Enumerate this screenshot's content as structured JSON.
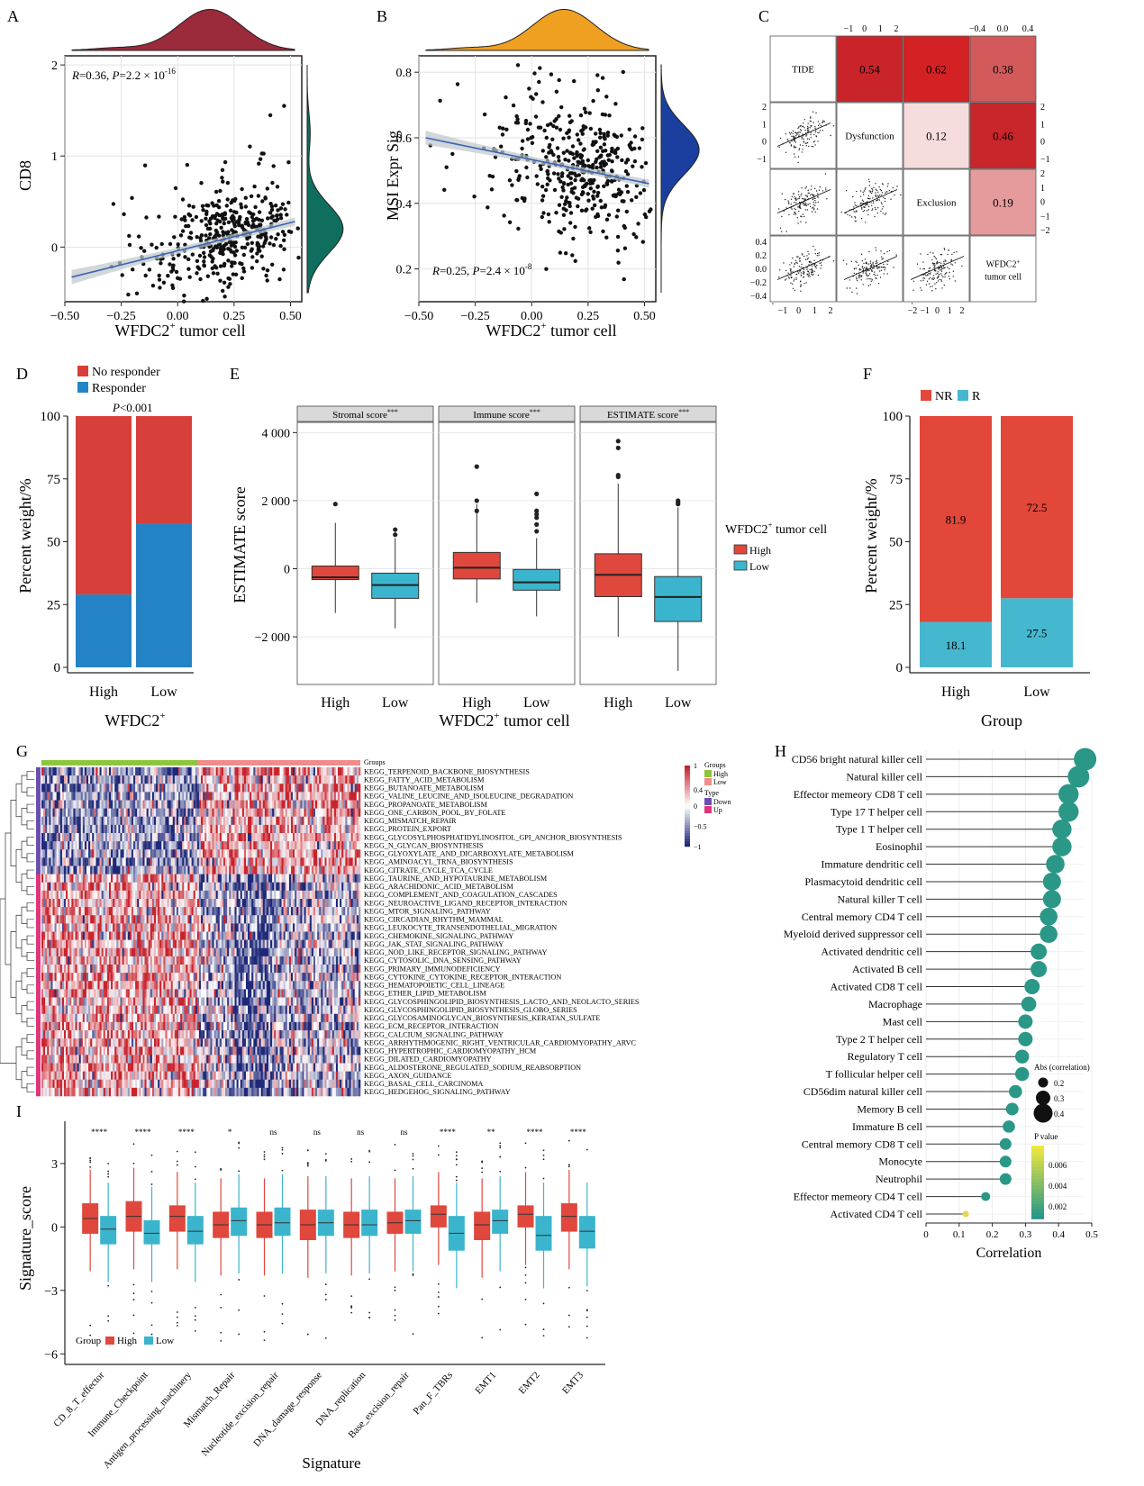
{
  "chart_data": [
    {
      "id": "A",
      "type": "scatter",
      "panel_label": "A",
      "xlabel": "WFDC2",
      "xlabel_sup": "+",
      "xlabel_rest": " tumor cell",
      "ylabel": "CD8",
      "annotation": {
        "r": "R",
        "r_val": "=0.36, ",
        "p": "P",
        "p_val": "=2.2 × 10",
        "p_exp": "-16"
      },
      "xlim": [
        -0.5,
        0.55
      ],
      "ylim": [
        -0.6,
        2.1
      ],
      "xticks": [
        "-0.50",
        "-0.25",
        "0.00",
        "0.25",
        "0.50"
      ],
      "xtick_vals": [
        -0.5,
        -0.25,
        0,
        0.25,
        0.5
      ],
      "yticks": [
        "0",
        "1",
        "2"
      ],
      "ytick_vals": [
        0,
        1,
        2
      ],
      "fit": {
        "x": [
          -0.47,
          0.52
        ],
        "y": [
          -0.33,
          0.28
        ]
      },
      "x_density_color": "#9b2a3a",
      "y_density_color": "#0f6e5e"
    },
    {
      "id": "B",
      "type": "scatter",
      "panel_label": "B",
      "xlabel": "WFDC2",
      "xlabel_sup": "+",
      "xlabel_rest": " tumor cell",
      "ylabel": "MSI Expr Sig",
      "annotation": {
        "r": "R",
        "r_val": "=0.25, ",
        "p": "P",
        "p_val": "=2.4 × 10",
        "p_exp": "-8"
      },
      "xlim": [
        -0.5,
        0.55
      ],
      "ylim": [
        0.1,
        0.85
      ],
      "xticks": [
        "-0.50",
        "-0.25",
        "0.00",
        "0.25",
        "0.50"
      ],
      "xtick_vals": [
        -0.5,
        -0.25,
        0,
        0.25,
        0.5
      ],
      "yticks": [
        "0.2",
        "0.4",
        "0.6",
        "0.8"
      ],
      "ytick_vals": [
        0.2,
        0.4,
        0.6,
        0.8
      ],
      "fit": {
        "x": [
          -0.47,
          0.52
        ],
        "y": [
          0.6,
          0.46
        ]
      },
      "x_density_color": "#f0a020",
      "y_density_color": "#1a3f9e"
    },
    {
      "id": "C",
      "type": "table",
      "panel_label": "C",
      "variables": [
        "TIDE",
        "Dysfunction",
        "Exclusion",
        "WFDC2",
        "tumor cell"
      ],
      "wfdc2_sup": "+",
      "correlations": [
        {
          "row": 0,
          "col": 1,
          "value": "0.54",
          "color": "#c8242a"
        },
        {
          "row": 0,
          "col": 2,
          "value": "0.62",
          "color": "#d42224"
        },
        {
          "row": 0,
          "col": 3,
          "value": "0.38",
          "color": "#d25a5a"
        },
        {
          "row": 1,
          "col": 2,
          "value": "0.12",
          "color": "#f6dcdc"
        },
        {
          "row": 1,
          "col": 3,
          "value": "0.46",
          "color": "#c9262c"
        },
        {
          "row": 2,
          "col": 3,
          "value": "0.19",
          "color": "#e59a9c"
        }
      ],
      "top_ticks_1": [
        "-1",
        "0",
        "1",
        "2"
      ],
      "top_ticks_2": [
        "-0.4",
        "0.0",
        "0.4"
      ],
      "right_ticks_1": [
        "2",
        "1",
        "0",
        "-1"
      ],
      "right_ticks_2": [
        "2",
        "1",
        "0",
        "-1",
        "-2"
      ],
      "left_ticks_1": [
        "2",
        "1",
        "0",
        "-1"
      ],
      "left_ticks_2": [
        "0.4",
        "0.2",
        "0.0",
        "-0.2",
        "-0.4"
      ],
      "bottom_ticks_1": [
        "-1",
        "0",
        "1",
        "2"
      ],
      "bottom_ticks_2": [
        "-2",
        "-1",
        "0",
        "1",
        "2"
      ]
    },
    {
      "id": "D",
      "type": "bar",
      "panel_label": "D",
      "categories": [
        "High",
        "Low"
      ],
      "series": [
        {
          "name": "Responder",
          "values": [
            29,
            57
          ],
          "color": "#2483c5"
        },
        {
          "name": "No responder",
          "values": [
            71,
            43
          ],
          "color": "#d7403a"
        }
      ],
      "ylabel": "Percent weight/%",
      "xlabel": "WFDC2",
      "xlabel_sup": "+",
      "yticks": [
        "0",
        "25",
        "50",
        "75",
        "100"
      ],
      "ylim": [
        0,
        100
      ],
      "annotation": {
        "p": "P",
        "p_rest": "<0.001"
      }
    },
    {
      "id": "E",
      "type": "bar",
      "subtype": "boxplot",
      "panel_label": "E",
      "facets": [
        {
          "title": "Stromal score",
          "stars": "***",
          "boxes": [
            {
              "group": "High",
              "q1": -320,
              "median": -250,
              "q3": 80,
              "whisker_low": -1300,
              "whisker_high": 1350,
              "outliers": [
                1900
              ]
            },
            {
              "group": "Low",
              "q1": -870,
              "median": -480,
              "q3": -130,
              "whisker_low": -1750,
              "whisker_high": 900,
              "outliers": [
                1000,
                1150
              ]
            }
          ]
        },
        {
          "title": "Immune score",
          "stars": "***",
          "boxes": [
            {
              "group": "High",
              "q1": -300,
              "median": 30,
              "q3": 480,
              "whisker_low": -1000,
              "whisker_high": 1900,
              "outliers": [
                2000,
                1700,
                3000
              ]
            },
            {
              "group": "Low",
              "q1": -630,
              "median": -400,
              "q3": -20,
              "whisker_low": -1400,
              "whisker_high": 900,
              "outliers": [
                1100,
                1300,
                1500,
                1600,
                1700,
                2200
              ]
            }
          ]
        },
        {
          "title": "ESTIMATE score",
          "stars": "***",
          "boxes": [
            {
              "group": "High",
              "q1": -820,
              "median": -180,
              "q3": 440,
              "whisker_low": -2000,
              "whisker_high": 2500,
              "outliers": [
                2700,
                2750,
                3550,
                3750
              ]
            },
            {
              "group": "Low",
              "q1": -1550,
              "median": -830,
              "q3": -230,
              "whisker_low": -3000,
              "whisker_high": 1800,
              "outliers": [
                1900,
                1950,
                2000
              ]
            }
          ]
        }
      ],
      "ylabel": "ESTIMATE score",
      "xlabel": "WFDC2",
      "xlabel_sup": "+",
      "xlabel_rest": " tumor cell",
      "yticks": [
        "4 000",
        "2 000",
        "0",
        "−2 000"
      ],
      "ytick_vals": [
        4000,
        2000,
        0,
        -2000
      ],
      "ylim": [
        -3400,
        4300
      ],
      "legend_title": "WFDC2",
      "legend_title_sup": "+",
      "legend_title_rest": " tumor cell",
      "legend": [
        {
          "name": "High",
          "color": "#e0473d"
        },
        {
          "name": "Low",
          "color": "#3bb5cd"
        }
      ]
    },
    {
      "id": "F",
      "type": "bar",
      "panel_label": "F",
      "categories": [
        "High",
        "Low"
      ],
      "series": [
        {
          "name": "R",
          "values": [
            18.1,
            27.5
          ],
          "labels": [
            "18.1",
            "27.5"
          ],
          "color": "#45b8cf"
        },
        {
          "name": "NR",
          "values": [
            81.9,
            72.5
          ],
          "labels": [
            "81.9",
            "72.5"
          ],
          "color": "#e2473a"
        }
      ],
      "ylabel": "Percent weight/%",
      "xlabel": "Group",
      "yticks": [
        "0",
        "25",
        "50",
        "75",
        "100"
      ],
      "ylim": [
        0,
        100
      ]
    },
    {
      "id": "G",
      "type": "heatmap",
      "panel_label": "G",
      "pathways": [
        "KEGG_TERPENOID_BACKBONE_BIOSYNTHESIS",
        "KEGG_FATTY_ACID_METABOLISM",
        "KEGG_BUTANOATE_METABOLISM",
        "KEGG_VALINE_LEUCINE_AND_ISOLEUCINE_DEGRADATION",
        "KEGG_PROPANOATE_METABOLISM",
        "KEGG_ONE_CARBON_POOL_BY_FOLATE",
        "KEGG_MISMATCH_REPAIR",
        "KEGG_PROTEIN_EXPORT",
        "KEGG_GLYCOSYLPHOSPHATIDYLINOSITOL_GPI_ANCHOR_BIOSYNTHESIS",
        "KEGG_N_GLYCAN_BIOSYNTHESIS",
        "KEGG_GLYOXYLATE_AND_DICARBOXYLATE_METABOLISM",
        "KEGG_AMINOACYL_TRNA_BIOSYNTHESIS",
        "KEGG_CITRATE_CYCLE_TCA_CYCLE",
        "KEGG_TAURINE_AND_HYPOTAURINE_METABOLISM",
        "KEGG_ARACHIDONIC_ACID_METABOLISM",
        "KEGG_COMPLEMENT_AND_COAGULATION_CASCADES",
        "KEGG_NEUROACTIVE_LIGAND_RECEPTOR_INTERACTION",
        "KEGG_MTOR_SIGNALING_PATHWAY",
        "KEGG_CIRCADIAN_RHYTHM_MAMMAL",
        "KEGG_LEUKOCYTE_TRANSENDOTHELIAL_MIGRATION",
        "KEGG_CHEMOKINE_SIGNALING_PATHWAY",
        "KEGG_JAK_STAT_SIGNALING_PATHWAY",
        "KEGG_NOD_LIKE_RECEPTOR_SIGNALING_PATHWAY",
        "KEGG_CYTOSOLIC_DNA_SENSING_PATHWAY",
        "KEGG_PRIMARY_IMMUNODEFICIENCY",
        "KEGG_CYTOKINE_CYTOKINE_RECEPTOR_INTERACTION",
        "KEGG_HEMATOPOIETIC_CELL_LINEAGE",
        "KEGG_ETHER_LIPID_METABOLISM",
        "KEGG_GLYCOSPHINGOLIPID_BIOSYNTHESIS_LACTO_AND_NEOLACTO_SERIES",
        "KEGG_GLYCOSPHINGOLIPID_BIOSYNTHESIS_GLOBO_SERIES",
        "KEGG_GLYCOSAMINOGLYCAN_BIOSYNTHESIS_KERATAN_SULFATE",
        "KEGG_ECM_RECEPTOR_INTERACTION",
        "KEGG_CALCIUM_SIGNALING_PATHWAY",
        "KEGG_ARRHYTHMOGENIC_RIGHT_VENTRICULAR_CARDIOMYOPATHY_ARVC",
        "KEGG_HYPERTROPHIC_CARDIOMYOPATHY_HCM",
        "KEGG_DILATED_CARDIOMYOPATHY",
        "KEGG_ALDOSTERONE_REGULATED_SODIUM_REABSORPTION",
        "KEGG_AXON_GUIDANCE",
        "KEGG_BASAL_CELL_CARCINOMA",
        "KEGG_HEDGEHOG_SIGNALING_PATHWAY"
      ],
      "groups_label": "Groups",
      "legend": {
        "groups_title": "Groups",
        "groups": [
          {
            "name": "High",
            "color": "#8cc63e"
          },
          {
            "name": "Low",
            "color": "#f08c8c"
          }
        ],
        "type_title": "Type",
        "types": [
          {
            "name": "Down",
            "color": "#6a4fb0"
          },
          {
            "name": "Up",
            "color": "#e0357a"
          }
        ],
        "scale_ticks": [
          "1",
          "0.4",
          "0",
          "-0.5",
          "-1"
        ],
        "scale_vals": [
          1,
          0.4,
          0,
          -0.5,
          -1
        ]
      },
      "down_count": 13
    },
    {
      "id": "H",
      "type": "scatter",
      "subtype": "lollipop",
      "panel_label": "H",
      "cells": [
        "CD56 bright natural killer cell",
        "Natural killer cell",
        "Effector memeory CD8 T cell",
        "Type 17 T helper cell",
        "Type 1 T helper cell",
        "Eosinophil",
        "Immature dendritic cell",
        "Plasmacytoid dendritic cell",
        "Natural killer T cell",
        "Central memory CD4 T cell",
        "Myeloid derived suppressor cell",
        "Activated dendritic cell",
        "Activated B cell",
        "Activated CD8 T cell",
        "Macrophage",
        "Mast cell",
        "Type 2 T helper cell",
        "Regulatory T cell",
        "T follicular helper cell",
        "CD56dim natural killer cell",
        "Memory B cell",
        "Immature B cell",
        "Central memory CD8 T cell",
        "Monocyte",
        "Neutrophil",
        "Effector memeory CD4 T cell",
        "Activated CD4 T cell"
      ],
      "correlation": [
        0.48,
        0.46,
        0.43,
        0.43,
        0.41,
        0.41,
        0.39,
        0.38,
        0.38,
        0.37,
        0.37,
        0.34,
        0.34,
        0.32,
        0.31,
        0.3,
        0.3,
        0.29,
        0.29,
        0.27,
        0.26,
        0.25,
        0.24,
        0.24,
        0.24,
        0.18,
        0.12
      ],
      "xlabel": "Correlation",
      "xticks": [
        "0",
        "0.1",
        "0.2",
        "0.3",
        "0.4",
        "0.5"
      ],
      "xlim": [
        0,
        0.5
      ],
      "size_legend_title": "Abs (correlation)",
      "size_legend": [
        "0.2",
        "0.3",
        "0.4"
      ],
      "color_legend_title": "P value",
      "color_legend": [
        "0.006",
        "0.004",
        "0.002"
      ],
      "point_color": "#2a9787",
      "weak_color": "#e8d84a"
    },
    {
      "id": "I",
      "type": "bar",
      "subtype": "boxplot",
      "panel_label": "I",
      "categories": [
        "CD_8_T_effector",
        "Immune_Checkpoint",
        "Antigen_processing_machinery",
        "Mismatch_Repair",
        "Nucleotide_excision_repair",
        "DNA_damage_response",
        "DNA_replication",
        "Base_excision_repair",
        "Pan_F_TBRs",
        "EMT1",
        "EMT2",
        "EMT3"
      ],
      "significance": [
        "****",
        "****",
        "****",
        "*",
        "ns",
        "ns",
        "ns",
        "ns",
        "****",
        "**",
        "****",
        "****"
      ],
      "high": [
        [
          -0.3,
          0.4,
          1.1
        ],
        [
          -0.2,
          0.5,
          1.2
        ],
        [
          -0.2,
          0.5,
          1.0
        ],
        [
          -0.5,
          0.1,
          0.7
        ],
        [
          -0.5,
          0.1,
          0.7
        ],
        [
          -0.6,
          0.1,
          0.8
        ],
        [
          -0.5,
          0.1,
          0.7
        ],
        [
          -0.3,
          0.2,
          0.7
        ],
        [
          0,
          0.6,
          1.0
        ],
        [
          -0.6,
          0.1,
          0.7
        ],
        [
          0,
          0.6,
          1.0
        ],
        [
          -0.2,
          0.5,
          1.1
        ]
      ],
      "low": [
        [
          -0.8,
          -0.1,
          0.5
        ],
        [
          -0.8,
          -0.3,
          0.3
        ],
        [
          -0.8,
          -0.2,
          0.5
        ],
        [
          -0.4,
          0.3,
          0.9
        ],
        [
          -0.4,
          0.2,
          0.9
        ],
        [
          -0.4,
          0.2,
          0.8
        ],
        [
          -0.4,
          0.1,
          0.8
        ],
        [
          -0.3,
          0.3,
          0.8
        ],
        [
          -1.1,
          -0.3,
          0.5
        ],
        [
          -0.3,
          0.3,
          0.8
        ],
        [
          -1.1,
          -0.4,
          0.5
        ],
        [
          -1.0,
          -0.2,
          0.5
        ]
      ],
      "ylabel": "Signature_score",
      "xlabel": "Signature",
      "yticks": [
        "3",
        "0",
        "-3",
        "-6"
      ],
      "ytick_vals": [
        3,
        0,
        -3,
        -6
      ],
      "ylim": [
        -6.5,
        5
      ],
      "legend_title": "Group",
      "legend": [
        {
          "name": "High",
          "color": "#e0473d"
        },
        {
          "name": "Low",
          "color": "#3bb5cd"
        }
      ]
    }
  ]
}
